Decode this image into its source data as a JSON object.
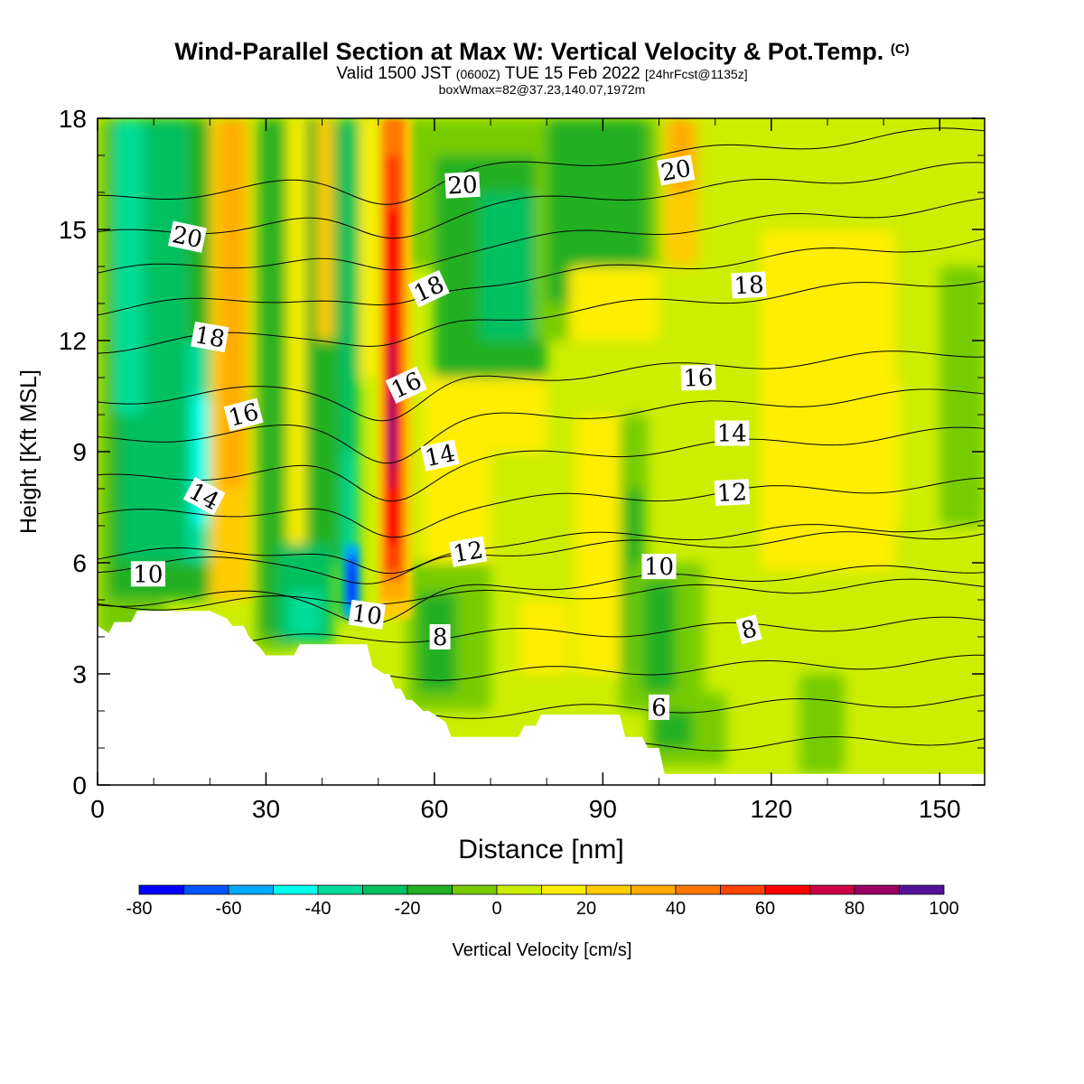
{
  "title": {
    "main": "Wind-Parallel Section at Max W: Vertical Velocity & Pot.Temp.",
    "copyright": "(C)",
    "valid_prefix": "Valid 1500 JST",
    "valid_zulu": "(0600Z)",
    "valid_date": "TUE 15 Feb 2022",
    "forecast": "[24hrFcst@1135z]",
    "boxwmax": "boxWmax=82@37.23,140.07,1972m"
  },
  "colorbar": {
    "label": "Vertical Velocity [cm/s]",
    "tick_labels": [
      "-80",
      "-60",
      "-40",
      "-20",
      "0",
      "20",
      "40",
      "60",
      "80",
      "100"
    ],
    "boundaries": [
      -80,
      -70,
      -60,
      -50,
      -40,
      -30,
      -20,
      -10,
      0,
      10,
      20,
      30,
      40,
      50,
      60,
      70,
      80,
      90,
      100
    ],
    "colors": [
      "#0000ff",
      "#0055ff",
      "#00aaff",
      "#00ffee",
      "#00dd99",
      "#00c060",
      "#22b022",
      "#77cc00",
      "#ccee00",
      "#ffee00",
      "#ffcc00",
      "#ffaa00",
      "#ff7700",
      "#ff4400",
      "#ff0000",
      "#cc0044",
      "#990066",
      "#551199"
    ]
  },
  "chart_data": {
    "type": "heatmap",
    "xlabel": "Distance [nm]",
    "ylabel": "Height [Kft MSL]",
    "xlim": [
      0,
      158
    ],
    "ylim": [
      0,
      18
    ],
    "xticks": [
      0,
      30,
      60,
      90,
      120,
      150
    ],
    "yticks": [
      0,
      3,
      6,
      9,
      12,
      15,
      18
    ],
    "filled_variable": "Vertical Velocity [cm/s]",
    "contour_variable": "Pot.Temp.",
    "contour_levels": [
      5,
      6,
      7,
      8,
      9,
      10,
      11,
      12,
      13,
      14,
      15,
      16,
      17,
      18,
      19,
      20,
      21
    ],
    "contour_labels": [
      {
        "text": "20",
        "x": 16,
        "y": 14.8,
        "rotate": 12
      },
      {
        "text": "20",
        "x": 65,
        "y": 16.2,
        "rotate": -3
      },
      {
        "text": "20",
        "x": 103,
        "y": 16.6,
        "rotate": -10
      },
      {
        "text": "18",
        "x": 20,
        "y": 12.1,
        "rotate": 10
      },
      {
        "text": "18",
        "x": 59,
        "y": 13.4,
        "rotate": -25
      },
      {
        "text": "18",
        "x": 116,
        "y": 13.5,
        "rotate": -3
      },
      {
        "text": "16",
        "x": 26,
        "y": 10.0,
        "rotate": -15
      },
      {
        "text": "16",
        "x": 55,
        "y": 10.8,
        "rotate": -25
      },
      {
        "text": "16",
        "x": 107,
        "y": 11.0,
        "rotate": -2
      },
      {
        "text": "14",
        "x": 19,
        "y": 7.8,
        "rotate": 28
      },
      {
        "text": "14",
        "x": 61,
        "y": 8.9,
        "rotate": -12
      },
      {
        "text": "14",
        "x": 113,
        "y": 9.5,
        "rotate": 0
      },
      {
        "text": "12",
        "x": 66,
        "y": 6.3,
        "rotate": -10
      },
      {
        "text": "12",
        "x": 113,
        "y": 7.9,
        "rotate": -3
      },
      {
        "text": "10",
        "x": 9,
        "y": 5.7,
        "rotate": 0
      },
      {
        "text": "10",
        "x": 48,
        "y": 4.6,
        "rotate": 8
      },
      {
        "text": "10",
        "x": 100,
        "y": 5.9,
        "rotate": 0
      },
      {
        "text": "8",
        "x": 61,
        "y": 4.0,
        "rotate": 0
      },
      {
        "text": "8",
        "x": 116,
        "y": 4.2,
        "rotate": -15
      },
      {
        "text": "6",
        "x": 100,
        "y": 2.1,
        "rotate": 0
      }
    ],
    "terrain": {
      "x": [
        0,
        2,
        3,
        6,
        7,
        20,
        23,
        24,
        26,
        27,
        29,
        30,
        35,
        36,
        48,
        49,
        51,
        52,
        53,
        54,
        55,
        56,
        58,
        59,
        62,
        63,
        70,
        71,
        75,
        76,
        78,
        79,
        85,
        86,
        93,
        94,
        97,
        98,
        100,
        101,
        158
      ],
      "height": [
        4.3,
        4.1,
        4.4,
        4.4,
        4.7,
        4.7,
        4.5,
        4.3,
        4.3,
        4.0,
        3.7,
        3.5,
        3.5,
        3.8,
        3.8,
        3.2,
        3.0,
        3.0,
        2.6,
        2.6,
        2.3,
        2.3,
        2.0,
        2.0,
        1.7,
        1.3,
        1.3,
        1.3,
        1.3,
        1.6,
        1.6,
        1.9,
        1.9,
        1.9,
        1.9,
        1.3,
        1.3,
        1.0,
        1.0,
        0.3,
        0.3
      ]
    },
    "w_features": [
      {
        "kind": "updraft_core",
        "x": 52,
        "y": 9.0,
        "max_value": 100
      },
      {
        "kind": "downdraft_core",
        "x": 45,
        "y": 5.5,
        "min_value": -80
      },
      {
        "kind": "updraft_band",
        "x": 24,
        "y_range": [
          6,
          18
        ],
        "value": 30
      },
      {
        "kind": "updraft_band",
        "x": 104,
        "y_range": [
          14,
          18
        ],
        "value": 30
      },
      {
        "kind": "updraft_region",
        "x_range": [
          85,
          108
        ],
        "y_range": [
          5,
          12
        ],
        "value": 20
      },
      {
        "kind": "downdraft_band",
        "x": 10,
        "y_range": [
          5,
          18
        ],
        "value": -40
      },
      {
        "kind": "downdraft_band",
        "x": 77,
        "y_range": [
          11,
          18
        ],
        "value": -20
      }
    ]
  }
}
